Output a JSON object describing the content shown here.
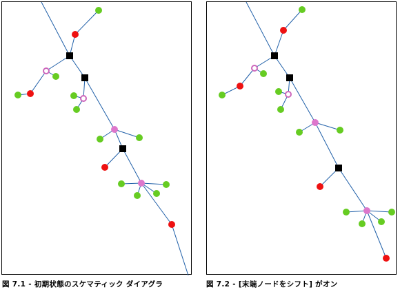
{
  "figures": [
    {
      "id": "left",
      "caption": "図 7.1 - 初期状態のスケマティック ダイアグラ"
    },
    {
      "id": "right",
      "caption": "図 7.2 - [末端ノードをシフト] がオン"
    }
  ],
  "colors": {
    "edge": "#1f5fa8",
    "junction": "#000000",
    "end_node_green": "#66cc22",
    "end_node_red": "#ee1111",
    "pink_node": "#dd77cc",
    "pink_ring": "#cc66bb"
  }
}
